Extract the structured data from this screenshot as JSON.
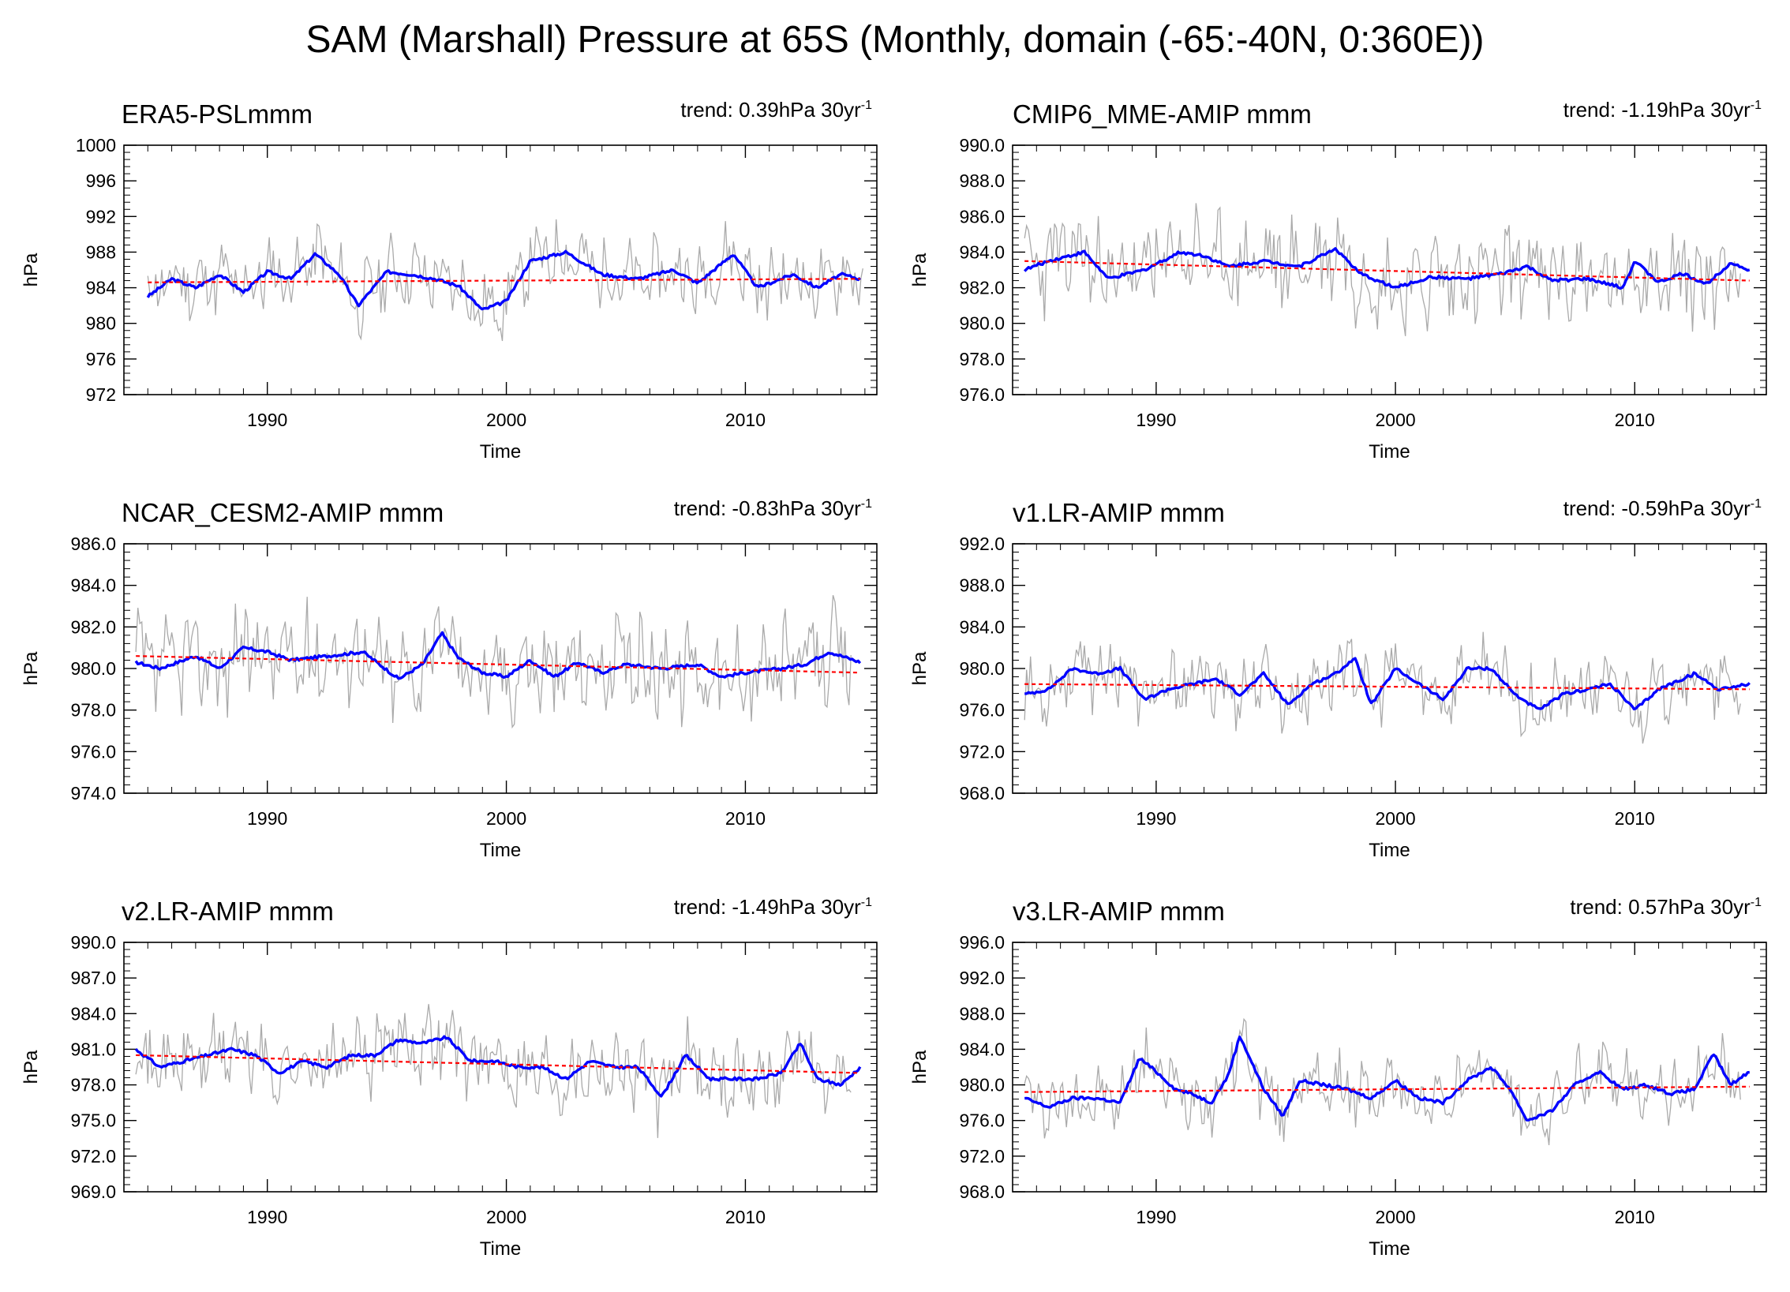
{
  "figure": {
    "title": "SAM (Marshall) Pressure at 65S (Monthly, domain (-65:-40N, 0:360E))"
  },
  "chart_data": [
    {
      "type": "line",
      "title": "ERA5-PSLmmm",
      "trend": {
        "prefix": "trend: 0.39hPa 30yr",
        "exponent": "-1",
        "value": 0.39
      },
      "xlabel": "Time",
      "ylabel": "hPa",
      "xlim": [
        1984.0,
        2015.5
      ],
      "ylim": [
        972,
        1000
      ],
      "yticks": [
        972,
        976,
        980,
        984,
        988,
        992,
        996,
        1000
      ],
      "ytick_labels": [
        "972",
        "976",
        "980",
        "984",
        "988",
        "992",
        "996",
        "1000"
      ],
      "xticks": [
        1990,
        2000,
        2010
      ],
      "xtick_labels": [
        "1990",
        "2000",
        "2010"
      ],
      "series": [
        {
          "name": "monthly",
          "color": "#aaaaaa",
          "style": "thin",
          "x_start": 1985.0,
          "x_step": 0.0833333,
          "mean": 985.0,
          "amplitude": 4.8,
          "seed": 11
        },
        {
          "name": "running mean",
          "color": "#0000ff",
          "style": "thick",
          "x": [
            1985.0,
            1986.0,
            1987.0,
            1988.0,
            1989.0,
            1990.0,
            1991.0,
            1992.0,
            1993.0,
            1993.8,
            1995.0,
            1996.0,
            1997.0,
            1998.0,
            1999.0,
            2000.0,
            2001.0,
            2002.5,
            2004.0,
            2005.5,
            2007.0,
            2008.0,
            2009.5,
            2010.5,
            2012.0,
            2013.0,
            2014.0,
            2014.8
          ],
          "values": [
            983.0,
            985.0,
            984.0,
            985.5,
            983.5,
            985.8,
            985.0,
            987.8,
            985.5,
            982.0,
            985.8,
            985.5,
            985.0,
            984.2,
            981.5,
            982.5,
            987.0,
            988.0,
            985.5,
            985.0,
            986.0,
            984.5,
            987.8,
            984.0,
            985.5,
            984.0,
            985.5,
            985.0
          ]
        },
        {
          "name": "trend",
          "color": "#ff0000",
          "style": "dashed",
          "x": [
            1985.0,
            2014.8
          ],
          "values": [
            984.6,
            985.0
          ]
        }
      ]
    },
    {
      "type": "line",
      "title": "CMIP6_MME-AMIP  mmm",
      "trend": {
        "prefix": "trend: -1.19hPa 30yr",
        "exponent": "-1",
        "value": -1.19
      },
      "xlabel": "Time",
      "ylabel": "hPa",
      "xlim": [
        1984.0,
        2015.5
      ],
      "ylim": [
        976,
        990
      ],
      "yticks": [
        976,
        978,
        980,
        982,
        984,
        986,
        988,
        990
      ],
      "ytick_labels": [
        "976.0",
        "978.0",
        "980.0",
        "982.0",
        "984.0",
        "986.0",
        "988.0",
        "990.0"
      ],
      "xticks": [
        1990,
        2000,
        2010
      ],
      "xtick_labels": [
        "1990",
        "2000",
        "2010"
      ],
      "series": [
        {
          "name": "monthly",
          "color": "#aaaaaa",
          "style": "thin",
          "x_start": 1984.5,
          "x_step": 0.0833333,
          "mean": 983.0,
          "amplitude": 3.4,
          "seed": 23
        },
        {
          "name": "running mean",
          "color": "#0000ff",
          "style": "thick",
          "x": [
            1984.5,
            1985.5,
            1987.0,
            1988.0,
            1989.5,
            1991.0,
            1992.0,
            1993.0,
            1994.5,
            1996.0,
            1997.5,
            1998.5,
            2000.0,
            2001.5,
            2003.0,
            2004.5,
            2005.5,
            2006.5,
            2008.0,
            2009.5,
            2010.0,
            2011.0,
            2012.0,
            2013.0,
            2014.0,
            2014.8
          ],
          "values": [
            983.0,
            983.5,
            984.0,
            982.5,
            983.0,
            984.0,
            983.8,
            983.2,
            983.5,
            983.2,
            984.2,
            982.8,
            982.0,
            982.6,
            982.5,
            982.8,
            983.2,
            982.4,
            982.5,
            982.0,
            983.5,
            982.3,
            982.8,
            982.2,
            983.4,
            983.0
          ]
        },
        {
          "name": "trend",
          "color": "#ff0000",
          "style": "dashed",
          "x": [
            1984.5,
            2014.8
          ],
          "values": [
            983.5,
            982.4
          ]
        }
      ]
    },
    {
      "type": "line",
      "title": "NCAR_CESM2-AMIP  mmm",
      "trend": {
        "prefix": "trend: -0.83hPa 30yr",
        "exponent": "-1",
        "value": -0.83
      },
      "xlabel": "Time",
      "ylabel": "hPa",
      "xlim": [
        1984.0,
        2015.5
      ],
      "ylim": [
        974,
        986
      ],
      "yticks": [
        974,
        976,
        978,
        980,
        982,
        984,
        986
      ],
      "ytick_labels": [
        "974.0",
        "976.0",
        "978.0",
        "980.0",
        "982.0",
        "984.0",
        "986.0"
      ],
      "xticks": [
        1990,
        2000,
        2010
      ],
      "xtick_labels": [
        "1990",
        "2000",
        "2010"
      ],
      "series": [
        {
          "name": "monthly",
          "color": "#aaaaaa",
          "style": "thin",
          "x_start": 1984.5,
          "x_step": 0.0833333,
          "mean": 980.2,
          "amplitude": 3.0,
          "seed": 37
        },
        {
          "name": "running mean",
          "color": "#0000ff",
          "style": "thick",
          "x": [
            1984.5,
            1985.5,
            1987.0,
            1988.0,
            1989.0,
            1990.0,
            1991.0,
            1992.5,
            1994.0,
            1995.5,
            1996.5,
            1997.3,
            1998.0,
            1999.0,
            2000.0,
            2001.0,
            2002.0,
            2003.0,
            2004.0,
            2005.0,
            2006.5,
            2008.0,
            2009.0,
            2010.0,
            2011.5,
            2012.5,
            2013.5,
            2014.8
          ],
          "values": [
            980.3,
            980.0,
            980.6,
            980.0,
            981.0,
            980.8,
            980.4,
            980.6,
            980.8,
            979.5,
            980.2,
            981.7,
            980.5,
            979.8,
            979.6,
            980.4,
            979.6,
            980.3,
            979.8,
            980.2,
            980.0,
            980.2,
            979.6,
            979.8,
            980.0,
            980.2,
            980.8,
            980.3
          ]
        },
        {
          "name": "trend",
          "color": "#ff0000",
          "style": "dashed",
          "x": [
            1984.5,
            2014.8
          ],
          "values": [
            980.6,
            979.8
          ]
        }
      ]
    },
    {
      "type": "line",
      "title": "v1.LR-AMIP  mmm",
      "trend": {
        "prefix": "trend: -0.59hPa 30yr",
        "exponent": "-1",
        "value": -0.59
      },
      "xlabel": "Time",
      "ylabel": "hPa",
      "xlim": [
        1984.0,
        2015.5
      ],
      "ylim": [
        968,
        992
      ],
      "yticks": [
        968,
        972,
        976,
        980,
        984,
        988,
        992
      ],
      "ytick_labels": [
        "968.0",
        "972.0",
        "976.0",
        "980.0",
        "984.0",
        "988.0",
        "992.0"
      ],
      "xticks": [
        1990,
        2000,
        2010
      ],
      "xtick_labels": [
        "1990",
        "2000",
        "2010"
      ],
      "series": [
        {
          "name": "monthly",
          "color": "#aaaaaa",
          "style": "thin",
          "x_start": 1984.5,
          "x_step": 0.0833333,
          "mean": 978.3,
          "amplitude": 4.2,
          "seed": 53
        },
        {
          "name": "running mean",
          "color": "#0000ff",
          "style": "thick",
          "x": [
            1984.5,
            1985.5,
            1986.5,
            1987.5,
            1988.5,
            1989.5,
            1990.5,
            1991.5,
            1992.5,
            1993.5,
            1994.5,
            1995.5,
            1996.5,
            1997.5,
            1998.3,
            1999.0,
            2000.0,
            2001.0,
            2002.0,
            2003.0,
            2004.0,
            2005.0,
            2006.0,
            2007.0,
            2008.0,
            2009.0,
            2010.0,
            2011.0,
            2012.5,
            2013.5,
            2014.8
          ],
          "values": [
            977.5,
            978.0,
            980.0,
            979.5,
            980.0,
            977.0,
            978.0,
            978.5,
            979.0,
            977.5,
            979.5,
            976.5,
            978.5,
            979.5,
            981.0,
            976.5,
            980.0,
            978.5,
            977.0,
            980.0,
            980.0,
            977.5,
            976.0,
            977.5,
            978.0,
            978.5,
            976.0,
            978.0,
            979.5,
            978.0,
            978.5
          ]
        },
        {
          "name": "trend",
          "color": "#ff0000",
          "style": "dashed",
          "x": [
            1984.5,
            2014.8
          ],
          "values": [
            978.5,
            978.0
          ]
        }
      ]
    },
    {
      "type": "line",
      "title": "v2.LR-AMIP  mmm",
      "trend": {
        "prefix": "trend: -1.49hPa 30yr",
        "exponent": "-1",
        "value": -1.49
      },
      "xlabel": "Time",
      "ylabel": "hPa",
      "xlim": [
        1984.0,
        2015.5
      ],
      "ylim": [
        969,
        990
      ],
      "yticks": [
        969,
        972,
        975,
        978,
        981,
        984,
        987,
        990
      ],
      "ytick_labels": [
        "969.0",
        "972.0",
        "975.0",
        "978.0",
        "981.0",
        "984.0",
        "987.0",
        "990.0"
      ],
      "xticks": [
        1990,
        2000,
        2010
      ],
      "xtick_labels": [
        "1990",
        "2000",
        "2010"
      ],
      "series": [
        {
          "name": "monthly",
          "color": "#aaaaaa",
          "style": "thin",
          "x_start": 1984.5,
          "x_step": 0.0833333,
          "mean": 979.8,
          "amplitude": 4.0,
          "seed": 71
        },
        {
          "name": "running mean",
          "color": "#0000ff",
          "style": "thick",
          "x": [
            1984.5,
            1985.5,
            1986.5,
            1987.5,
            1988.5,
            1989.5,
            1990.5,
            1991.5,
            1992.5,
            1993.5,
            1994.5,
            1995.5,
            1996.5,
            1997.5,
            1998.5,
            1999.5,
            2000.5,
            2001.5,
            2002.5,
            2003.5,
            2004.5,
            2005.5,
            2006.5,
            2007.5,
            2008.5,
            2009.5,
            2010.5,
            2011.5,
            2012.3,
            2013.0,
            2014.0,
            2014.8
          ],
          "values": [
            981.0,
            979.5,
            980.0,
            980.5,
            981.0,
            980.5,
            979.0,
            980.0,
            979.5,
            980.5,
            980.5,
            981.8,
            981.5,
            982.0,
            980.0,
            980.0,
            979.5,
            979.5,
            978.5,
            980.0,
            979.5,
            979.5,
            977.0,
            980.5,
            978.5,
            978.5,
            978.5,
            979.0,
            981.5,
            978.5,
            978.0,
            979.5
          ]
        },
        {
          "name": "trend",
          "color": "#ff0000",
          "style": "dashed",
          "x": [
            1984.5,
            2014.8
          ],
          "values": [
            980.5,
            979.0
          ]
        }
      ]
    },
    {
      "type": "line",
      "title": "v3.LR-AMIP  mmm",
      "trend": {
        "prefix": "trend: 0.57hPa 30yr",
        "exponent": "-1",
        "value": 0.57
      },
      "xlabel": "Time",
      "ylabel": "hPa",
      "xlim": [
        1984.0,
        2015.5
      ],
      "ylim": [
        968,
        996
      ],
      "yticks": [
        968,
        972,
        976,
        980,
        984,
        988,
        992,
        996
      ],
      "ytick_labels": [
        "968.0",
        "972.0",
        "976.0",
        "980.0",
        "984.0",
        "988.0",
        "992.0",
        "996.0"
      ],
      "xticks": [
        1990,
        2000,
        2010
      ],
      "xtick_labels": [
        "1990",
        "2000",
        "2010"
      ],
      "series": [
        {
          "name": "monthly",
          "color": "#aaaaaa",
          "style": "thin",
          "x_start": 1984.5,
          "x_step": 0.0833333,
          "mean": 979.5,
          "amplitude": 4.6,
          "seed": 97
        },
        {
          "name": "running mean",
          "color": "#0000ff",
          "style": "thick",
          "x": [
            1984.5,
            1985.5,
            1986.5,
            1987.5,
            1988.5,
            1989.3,
            1990.0,
            1990.8,
            1991.5,
            1992.3,
            1993.0,
            1993.5,
            1994.5,
            1995.3,
            1996.0,
            1997.0,
            1998.0,
            1999.0,
            2000.0,
            2001.0,
            2002.0,
            2003.0,
            2004.0,
            2004.8,
            2005.5,
            2006.5,
            2007.5,
            2008.5,
            2009.5,
            2010.5,
            2011.5,
            2012.5,
            2013.3,
            2014.0,
            2014.8
          ],
          "values": [
            978.5,
            977.5,
            978.5,
            978.5,
            978.0,
            983.0,
            981.5,
            979.5,
            979.0,
            978.0,
            981.0,
            985.5,
            979.5,
            976.5,
            980.5,
            980.0,
            979.5,
            978.5,
            980.5,
            978.5,
            978.0,
            980.5,
            982.0,
            979.5,
            976.0,
            977.0,
            980.0,
            981.5,
            979.5,
            980.0,
            979.0,
            979.5,
            983.5,
            980.0,
            981.5
          ]
        },
        {
          "name": "trend",
          "color": "#ff0000",
          "style": "dashed",
          "x": [
            1984.5,
            2014.8
          ],
          "values": [
            979.2,
            979.8
          ]
        }
      ]
    }
  ]
}
